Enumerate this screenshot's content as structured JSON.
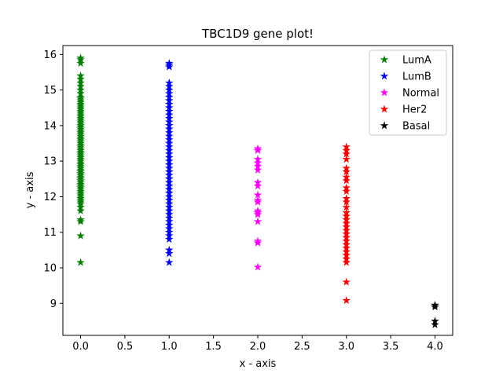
{
  "chart_data": {
    "type": "scatter",
    "title": "TBC1D9 gene plot!",
    "xlabel": "x - axis",
    "ylabel": "y - axis",
    "xlim": [
      -0.2,
      4.2
    ],
    "ylim": [
      8.1,
      16.25
    ],
    "xticks": [
      0.0,
      0.5,
      1.0,
      1.5,
      2.0,
      2.5,
      3.0,
      3.5,
      4.0
    ],
    "xtick_labels": [
      "0.0",
      "0.5",
      "1.0",
      "1.5",
      "2.0",
      "2.5",
      "3.0",
      "3.5",
      "4.0"
    ],
    "yticks": [
      9,
      10,
      11,
      12,
      13,
      14,
      15,
      16
    ],
    "ytick_labels": [
      "9",
      "10",
      "11",
      "12",
      "13",
      "14",
      "15",
      "16"
    ],
    "grid": false,
    "legend_position": "top-right",
    "marker": "star",
    "series": [
      {
        "name": "LumA",
        "color": "#008000",
        "x": 0,
        "y": [
          10.15,
          10.9,
          11.3,
          11.35,
          11.6,
          11.7,
          11.8,
          11.85,
          11.9,
          11.95,
          12.0,
          12.05,
          12.1,
          12.15,
          12.2,
          12.25,
          12.3,
          12.35,
          12.4,
          12.45,
          12.5,
          12.55,
          12.6,
          12.65,
          12.7,
          12.75,
          12.8,
          12.85,
          12.9,
          12.95,
          13.0,
          13.05,
          13.1,
          13.15,
          13.2,
          13.25,
          13.3,
          13.35,
          13.4,
          13.45,
          13.5,
          13.55,
          13.6,
          13.65,
          13.7,
          13.75,
          13.8,
          13.85,
          13.9,
          13.95,
          14.0,
          14.05,
          14.1,
          14.15,
          14.2,
          14.25,
          14.3,
          14.35,
          14.4,
          14.45,
          14.5,
          14.55,
          14.6,
          14.65,
          14.7,
          14.75,
          14.8,
          14.9,
          15.0,
          15.1,
          15.2,
          15.3,
          15.4,
          15.75,
          15.85,
          15.9
        ]
      },
      {
        "name": "LumB",
        "color": "#0000ff",
        "x": 1,
        "y": [
          10.15,
          10.4,
          10.5,
          10.8,
          10.9,
          11.0,
          11.1,
          11.2,
          11.3,
          11.4,
          11.5,
          11.6,
          11.7,
          11.8,
          11.9,
          12.0,
          12.1,
          12.2,
          12.3,
          12.4,
          12.5,
          12.6,
          12.7,
          12.8,
          12.9,
          13.0,
          13.1,
          13.2,
          13.3,
          13.4,
          13.5,
          13.6,
          13.7,
          13.8,
          13.9,
          14.0,
          14.1,
          14.2,
          14.3,
          14.4,
          14.5,
          14.6,
          14.7,
          14.8,
          14.9,
          15.0,
          15.1,
          15.2,
          15.65,
          15.7,
          15.75
        ]
      },
      {
        "name": "Normal",
        "color": "#ff00ff",
        "x": 2,
        "y": [
          10.02,
          10.7,
          10.75,
          11.3,
          11.5,
          11.55,
          11.6,
          11.85,
          11.9,
          12.05,
          12.3,
          12.4,
          12.75,
          12.85,
          12.95,
          13.05,
          13.3,
          13.35
        ]
      },
      {
        "name": "Her2",
        "color": "#ff0000",
        "x": 3,
        "y": [
          9.08,
          9.6,
          10.15,
          10.25,
          10.35,
          10.45,
          10.55,
          10.65,
          10.75,
          10.85,
          10.95,
          11.05,
          11.15,
          11.25,
          11.35,
          11.45,
          11.55,
          11.7,
          11.85,
          11.95,
          12.15,
          12.25,
          12.45,
          12.55,
          12.7,
          12.8,
          13.05,
          13.2,
          13.3,
          13.4
        ]
      },
      {
        "name": "Basal",
        "color": "#000000",
        "x": 4,
        "y": [
          8.4,
          8.5,
          8.9,
          8.95
        ]
      }
    ]
  }
}
